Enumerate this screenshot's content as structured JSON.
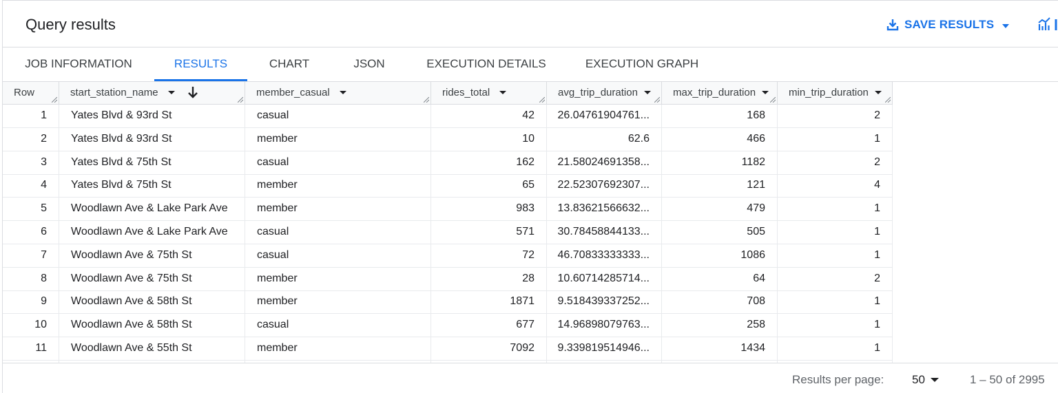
{
  "header": {
    "title": "Query results",
    "save_label": "SAVE RESULTS",
    "accent_color": "#1a73e8"
  },
  "tabs": [
    {
      "label": "JOB INFORMATION",
      "active": false
    },
    {
      "label": "RESULTS",
      "active": true
    },
    {
      "label": "CHART",
      "active": false
    },
    {
      "label": "JSON",
      "active": false
    },
    {
      "label": "EXECUTION DETAILS",
      "active": false
    },
    {
      "label": "EXECUTION GRAPH",
      "active": false
    }
  ],
  "table": {
    "columns": [
      "Row",
      "start_station_name",
      "member_casual",
      "rides_total",
      "avg_trip_duration",
      "max_trip_duration",
      "min_trip_duration"
    ],
    "sorted_column": "start_station_name",
    "sort_direction": "descending",
    "rows": [
      [
        "1",
        "Yates Blvd & 93rd St",
        "casual",
        "42",
        "26.04761904761...",
        "168",
        "2"
      ],
      [
        "2",
        "Yates Blvd & 93rd St",
        "member",
        "10",
        "62.6",
        "466",
        "1"
      ],
      [
        "3",
        "Yates Blvd & 75th St",
        "casual",
        "162",
        "21.58024691358...",
        "1182",
        "2"
      ],
      [
        "4",
        "Yates Blvd & 75th St",
        "member",
        "65",
        "22.52307692307...",
        "121",
        "4"
      ],
      [
        "5",
        "Woodlawn Ave & Lake Park Ave",
        "member",
        "983",
        "13.83621566632...",
        "479",
        "1"
      ],
      [
        "6",
        "Woodlawn Ave & Lake Park Ave",
        "casual",
        "571",
        "30.78458844133...",
        "505",
        "1"
      ],
      [
        "7",
        "Woodlawn Ave & 75th St",
        "casual",
        "72",
        "46.70833333333...",
        "1086",
        "1"
      ],
      [
        "8",
        "Woodlawn Ave & 75th St",
        "member",
        "28",
        "10.60714285714...",
        "64",
        "2"
      ],
      [
        "9",
        "Woodlawn Ave & 58th St",
        "member",
        "1871",
        "9.518439337252...",
        "708",
        "1"
      ],
      [
        "10",
        "Woodlawn Ave & 58th St",
        "casual",
        "677",
        "14.96898079763...",
        "258",
        "1"
      ],
      [
        "11",
        "Woodlawn Ave & 55th St",
        "member",
        "7092",
        "9.339819514946...",
        "1434",
        "1"
      ]
    ]
  },
  "footer": {
    "rpp_label": "Results per page:",
    "rpp_value": "50",
    "page_range": "1 – 50 of 2995"
  }
}
